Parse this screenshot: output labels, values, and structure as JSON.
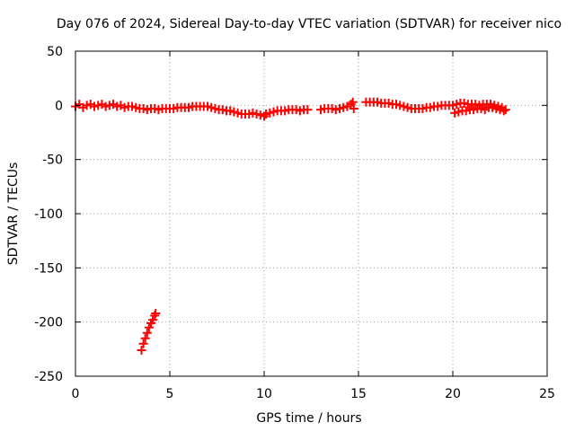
{
  "chart_data": {
    "type": "scatter",
    "title": "Day 076 of 2024, Sidereal Day-to-day VTEC variation (SDTVAR) for receiver nico",
    "xlabel": "GPS time / hours",
    "ylabel": "SDTVAR / TECUs",
    "xlim": [
      0,
      25
    ],
    "ylim": [
      -250,
      50
    ],
    "xticks": [
      0,
      5,
      10,
      15,
      20,
      25
    ],
    "yticks": [
      50,
      0,
      -50,
      -100,
      -150,
      -200,
      -250
    ],
    "grid": true,
    "marker": "plus",
    "series": [
      {
        "color": "#ff0000",
        "points": [
          [
            0.0,
            -1
          ],
          [
            0.2,
            1
          ],
          [
            0.4,
            -2
          ],
          [
            0.6,
            0
          ],
          [
            0.8,
            1
          ],
          [
            1.0,
            -1
          ],
          [
            1.2,
            0
          ],
          [
            1.4,
            1
          ],
          [
            1.6,
            -1
          ],
          [
            1.8,
            0
          ],
          [
            2.0,
            1
          ],
          [
            2.2,
            -1
          ],
          [
            2.4,
            0
          ],
          [
            2.6,
            -2
          ],
          [
            2.8,
            -1
          ],
          [
            3.0,
            -1
          ],
          [
            3.2,
            -2
          ],
          [
            3.4,
            -3
          ],
          [
            3.6,
            -3
          ],
          [
            3.8,
            -4
          ],
          [
            4.0,
            -3
          ],
          [
            4.2,
            -3
          ],
          [
            4.4,
            -4
          ],
          [
            4.6,
            -3
          ],
          [
            4.8,
            -3
          ],
          [
            5.0,
            -3
          ],
          [
            5.2,
            -3
          ],
          [
            5.4,
            -2
          ],
          [
            5.6,
            -2
          ],
          [
            5.8,
            -2
          ],
          [
            6.0,
            -2
          ],
          [
            6.2,
            -1
          ],
          [
            6.4,
            -1
          ],
          [
            6.6,
            -1
          ],
          [
            6.8,
            -1
          ],
          [
            7.0,
            -1
          ],
          [
            7.2,
            -2
          ],
          [
            7.4,
            -3
          ],
          [
            7.6,
            -4
          ],
          [
            7.8,
            -4
          ],
          [
            8.0,
            -5
          ],
          [
            8.2,
            -5
          ],
          [
            8.4,
            -6
          ],
          [
            8.6,
            -7
          ],
          [
            8.8,
            -8
          ],
          [
            9.0,
            -8
          ],
          [
            9.2,
            -8
          ],
          [
            9.4,
            -7
          ],
          [
            9.6,
            -8
          ],
          [
            9.8,
            -9
          ],
          [
            10.0,
            -10
          ],
          [
            10.1,
            -8
          ],
          [
            10.3,
            -7
          ],
          [
            10.5,
            -6
          ],
          [
            10.7,
            -5
          ],
          [
            10.9,
            -5
          ],
          [
            11.1,
            -5
          ],
          [
            11.3,
            -4
          ],
          [
            11.5,
            -4
          ],
          [
            11.7,
            -4
          ],
          [
            11.9,
            -5
          ],
          [
            12.1,
            -4
          ],
          [
            12.3,
            -4
          ],
          [
            13.0,
            -4
          ],
          [
            13.2,
            -3
          ],
          [
            13.4,
            -3
          ],
          [
            13.6,
            -3
          ],
          [
            13.8,
            -4
          ],
          [
            14.0,
            -3
          ],
          [
            14.2,
            -2
          ],
          [
            14.4,
            -1
          ],
          [
            14.6,
            1
          ],
          [
            14.7,
            3
          ],
          [
            14.75,
            -3
          ],
          [
            15.4,
            3
          ],
          [
            15.6,
            3
          ],
          [
            15.8,
            3
          ],
          [
            16.0,
            3
          ],
          [
            16.2,
            2
          ],
          [
            16.4,
            2
          ],
          [
            16.6,
            2
          ],
          [
            16.8,
            1
          ],
          [
            17.0,
            1
          ],
          [
            17.2,
            0
          ],
          [
            17.4,
            -1
          ],
          [
            17.6,
            -2
          ],
          [
            17.8,
            -3
          ],
          [
            18.0,
            -3
          ],
          [
            18.2,
            -3
          ],
          [
            18.4,
            -3
          ],
          [
            18.6,
            -2
          ],
          [
            18.8,
            -2
          ],
          [
            19.0,
            -1
          ],
          [
            19.2,
            -1
          ],
          [
            19.4,
            0
          ],
          [
            19.6,
            0
          ],
          [
            19.8,
            0
          ],
          [
            20.0,
            0
          ],
          [
            20.1,
            -7
          ],
          [
            20.3,
            -6
          ],
          [
            20.5,
            -5
          ],
          [
            20.7,
            -5
          ],
          [
            20.9,
            -4
          ],
          [
            21.1,
            -4
          ],
          [
            21.3,
            -3
          ],
          [
            21.5,
            -3
          ],
          [
            21.7,
            -4
          ],
          [
            21.9,
            -2
          ],
          [
            22.1,
            -2
          ],
          [
            22.3,
            -3
          ],
          [
            22.5,
            -4
          ],
          [
            22.7,
            -5
          ],
          [
            20.2,
            1
          ],
          [
            20.4,
            2
          ],
          [
            20.6,
            2
          ],
          [
            20.8,
            1
          ],
          [
            21.0,
            1
          ],
          [
            21.2,
            1
          ],
          [
            21.4,
            0
          ],
          [
            21.6,
            1
          ],
          [
            21.8,
            1
          ],
          [
            22.0,
            1
          ],
          [
            22.2,
            0
          ],
          [
            22.4,
            -1
          ],
          [
            22.6,
            -2
          ],
          [
            22.8,
            -4
          ],
          [
            3.5,
            -226
          ],
          [
            3.6,
            -220
          ],
          [
            3.7,
            -215
          ],
          [
            3.8,
            -210
          ],
          [
            3.9,
            -205
          ],
          [
            4.0,
            -201
          ],
          [
            4.1,
            -198
          ],
          [
            4.2,
            -194
          ],
          [
            4.25,
            -192
          ]
        ]
      }
    ]
  }
}
